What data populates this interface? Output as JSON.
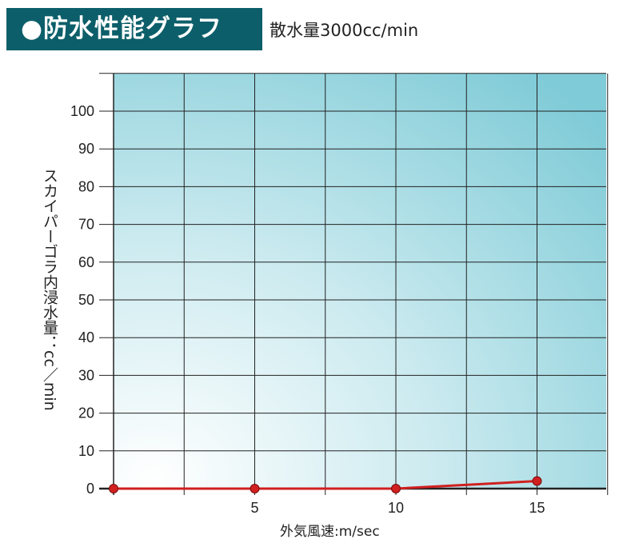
{
  "header": {
    "title": "●防水性能グラフ",
    "subtitle": "散水量3000cc/min"
  },
  "colors": {
    "title_bg": "#0c5f6a",
    "plot_bg_light": "#ffffff",
    "plot_bg_dark": "#8fd3dd",
    "grid": "#222222",
    "series": "#d02020"
  },
  "chart_data": {
    "type": "line",
    "title": "防水性能グラフ",
    "subtitle": "散水量3000cc/min",
    "xlabel": "外気風速:m/sec",
    "ylabel": "スカイパーゴラ内浸水量：cc／min",
    "x": [
      0,
      5,
      10,
      15
    ],
    "series": [
      {
        "values": [
          0,
          0,
          0,
          2
        ]
      }
    ],
    "xlim": [
      0,
      17.5
    ],
    "ylim": [
      0,
      110
    ],
    "xticks": [
      5,
      10,
      15
    ],
    "yticks": [
      0,
      10,
      20,
      30,
      40,
      50,
      60,
      70,
      80,
      90,
      100
    ],
    "grid": true
  }
}
